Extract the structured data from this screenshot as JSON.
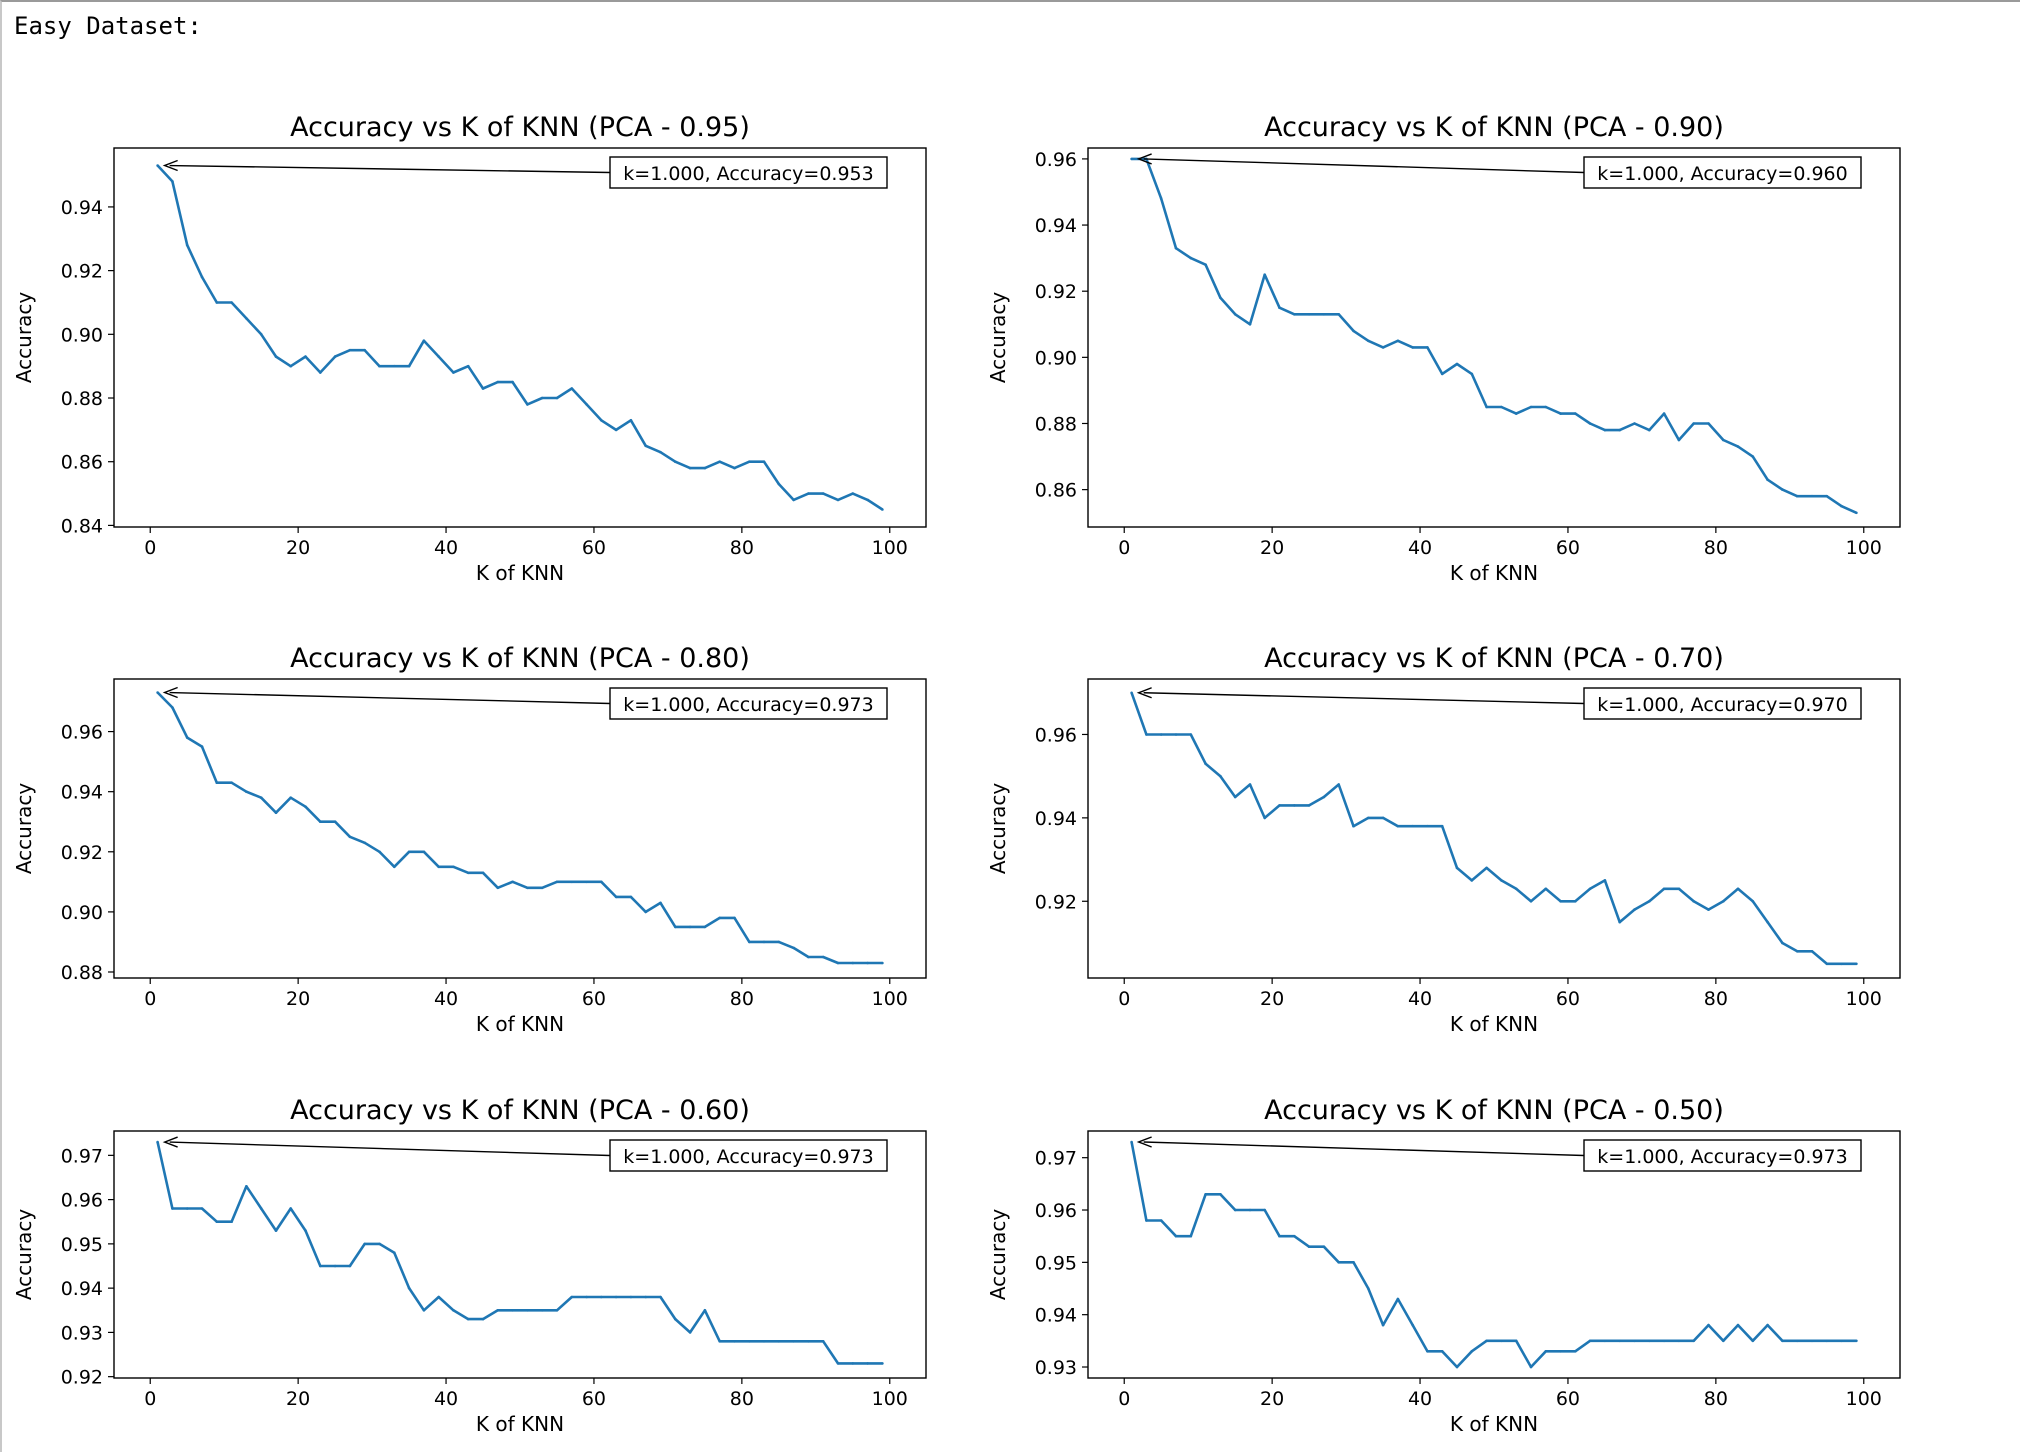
{
  "output_label": "Easy Dataset:",
  "chart_data": [
    {
      "type": "line",
      "title": "Accuracy vs K of KNN (PCA - 0.95)",
      "xlabel": "K of KNN",
      "ylabel": "Accuracy",
      "xlim": [
        -4.9,
        104.9
      ],
      "ylim": [
        0.8395,
        0.9585
      ],
      "xticks": [
        0,
        20,
        40,
        60,
        80,
        100
      ],
      "yticks": [
        0.84,
        0.86,
        0.88,
        0.9,
        0.92,
        0.94
      ],
      "ytick_labels": [
        "0.84",
        "0.86",
        "0.88",
        "0.90",
        "0.92",
        "0.94"
      ],
      "annotation": "k=1.000, Accuracy=0.953",
      "annotation_point": [
        1,
        0.953
      ],
      "color": "#1f77b4",
      "x": [
        1,
        3,
        5,
        7,
        9,
        11,
        13,
        15,
        17,
        19,
        21,
        23,
        25,
        27,
        29,
        31,
        33,
        35,
        37,
        39,
        41,
        43,
        45,
        47,
        49,
        51,
        53,
        55,
        57,
        59,
        61,
        63,
        65,
        67,
        69,
        71,
        73,
        75,
        77,
        79,
        81,
        83,
        85,
        87,
        89,
        91,
        93,
        95,
        97,
        99
      ],
      "y": [
        0.953,
        0.948,
        0.928,
        0.918,
        0.91,
        0.91,
        0.905,
        0.9,
        0.893,
        0.89,
        0.893,
        0.888,
        0.893,
        0.895,
        0.895,
        0.89,
        0.89,
        0.89,
        0.898,
        0.893,
        0.888,
        0.89,
        0.883,
        0.885,
        0.885,
        0.878,
        0.88,
        0.88,
        0.883,
        0.878,
        0.873,
        0.87,
        0.873,
        0.865,
        0.863,
        0.86,
        0.858,
        0.858,
        0.86,
        0.858,
        0.86,
        0.86,
        0.853,
        0.848,
        0.85,
        0.85,
        0.848,
        0.85,
        0.848,
        0.845
      ]
    },
    {
      "type": "line",
      "title": "Accuracy vs K of KNN (PCA - 0.90)",
      "xlabel": "K of KNN",
      "ylabel": "Accuracy",
      "xlim": [
        -4.9,
        104.9
      ],
      "ylim": [
        0.8487,
        0.9633
      ],
      "xticks": [
        0,
        20,
        40,
        60,
        80,
        100
      ],
      "yticks": [
        0.86,
        0.88,
        0.9,
        0.92,
        0.94,
        0.96
      ],
      "ytick_labels": [
        "0.86",
        "0.88",
        "0.90",
        "0.92",
        "0.94",
        "0.96"
      ],
      "annotation": "k=1.000, Accuracy=0.960",
      "annotation_point": [
        1,
        0.96
      ],
      "color": "#1f77b4",
      "x": [
        1,
        3,
        5,
        7,
        9,
        11,
        13,
        15,
        17,
        19,
        21,
        23,
        25,
        27,
        29,
        31,
        33,
        35,
        37,
        39,
        41,
        43,
        45,
        47,
        49,
        51,
        53,
        55,
        57,
        59,
        61,
        63,
        65,
        67,
        69,
        71,
        73,
        75,
        77,
        79,
        81,
        83,
        85,
        87,
        89,
        91,
        93,
        95,
        97,
        99
      ],
      "y": [
        0.96,
        0.96,
        0.948,
        0.933,
        0.93,
        0.928,
        0.918,
        0.913,
        0.91,
        0.925,
        0.915,
        0.913,
        0.913,
        0.913,
        0.913,
        0.908,
        0.905,
        0.903,
        0.905,
        0.903,
        0.903,
        0.895,
        0.898,
        0.895,
        0.885,
        0.885,
        0.883,
        0.885,
        0.885,
        0.883,
        0.883,
        0.88,
        0.878,
        0.878,
        0.88,
        0.878,
        0.883,
        0.875,
        0.88,
        0.88,
        0.875,
        0.873,
        0.87,
        0.863,
        0.86,
        0.858,
        0.858,
        0.858,
        0.855,
        0.853
      ]
    },
    {
      "type": "line",
      "title": "Accuracy vs K of KNN (PCA - 0.80)",
      "xlabel": "K of KNN",
      "ylabel": "Accuracy",
      "xlim": [
        -4.9,
        104.9
      ],
      "ylim": [
        0.878,
        0.9775
      ],
      "xticks": [
        0,
        20,
        40,
        60,
        80,
        100
      ],
      "yticks": [
        0.88,
        0.9,
        0.92,
        0.94,
        0.96
      ],
      "ytick_labels": [
        "0.88",
        "0.90",
        "0.92",
        "0.94",
        "0.96"
      ],
      "annotation": "k=1.000, Accuracy=0.973",
      "annotation_point": [
        1,
        0.973
      ],
      "color": "#1f77b4",
      "x": [
        1,
        3,
        5,
        7,
        9,
        11,
        13,
        15,
        17,
        19,
        21,
        23,
        25,
        27,
        29,
        31,
        33,
        35,
        37,
        39,
        41,
        43,
        45,
        47,
        49,
        51,
        53,
        55,
        57,
        59,
        61,
        63,
        65,
        67,
        69,
        71,
        73,
        75,
        77,
        79,
        81,
        83,
        85,
        87,
        89,
        91,
        93,
        95,
        97,
        99
      ],
      "y": [
        0.973,
        0.968,
        0.958,
        0.955,
        0.943,
        0.943,
        0.94,
        0.938,
        0.933,
        0.938,
        0.935,
        0.93,
        0.93,
        0.925,
        0.923,
        0.92,
        0.915,
        0.92,
        0.92,
        0.915,
        0.915,
        0.913,
        0.913,
        0.908,
        0.91,
        0.908,
        0.908,
        0.91,
        0.91,
        0.91,
        0.91,
        0.905,
        0.905,
        0.9,
        0.903,
        0.895,
        0.895,
        0.895,
        0.898,
        0.898,
        0.89,
        0.89,
        0.89,
        0.888,
        0.885,
        0.885,
        0.883,
        0.883,
        0.883,
        0.883
      ]
    },
    {
      "type": "line",
      "title": "Accuracy vs K of KNN (PCA - 0.70)",
      "xlabel": "K of KNN",
      "ylabel": "Accuracy",
      "xlim": [
        -4.9,
        104.9
      ],
      "ylim": [
        0.9016,
        0.9733
      ],
      "xticks": [
        0,
        20,
        40,
        60,
        80,
        100
      ],
      "yticks": [
        0.92,
        0.94,
        0.96
      ],
      "ytick_labels": [
        "0.92",
        "0.94",
        "0.96"
      ],
      "annotation": "k=1.000, Accuracy=0.970",
      "annotation_point": [
        1,
        0.97
      ],
      "color": "#1f77b4",
      "x": [
        1,
        3,
        5,
        7,
        9,
        11,
        13,
        15,
        17,
        19,
        21,
        23,
        25,
        27,
        29,
        31,
        33,
        35,
        37,
        39,
        41,
        43,
        45,
        47,
        49,
        51,
        53,
        55,
        57,
        59,
        61,
        63,
        65,
        67,
        69,
        71,
        73,
        75,
        77,
        79,
        81,
        83,
        85,
        87,
        89,
        91,
        93,
        95,
        97,
        99
      ],
      "y": [
        0.97,
        0.96,
        0.96,
        0.96,
        0.96,
        0.953,
        0.95,
        0.945,
        0.948,
        0.94,
        0.943,
        0.943,
        0.943,
        0.945,
        0.948,
        0.938,
        0.94,
        0.94,
        0.938,
        0.938,
        0.938,
        0.938,
        0.928,
        0.925,
        0.928,
        0.925,
        0.923,
        0.92,
        0.923,
        0.92,
        0.92,
        0.923,
        0.925,
        0.915,
        0.918,
        0.92,
        0.923,
        0.923,
        0.92,
        0.918,
        0.92,
        0.923,
        0.92,
        0.915,
        0.91,
        0.908,
        0.908,
        0.905,
        0.905,
        0.905
      ]
    },
    {
      "type": "line",
      "title": "Accuracy vs K of KNN (PCA - 0.60)",
      "xlabel": "K of KNN",
      "ylabel": "Accuracy",
      "xlim": [
        -4.9,
        104.9
      ],
      "ylim": [
        0.9197,
        0.9755
      ],
      "xticks": [
        0,
        20,
        40,
        60,
        80,
        100
      ],
      "yticks": [
        0.92,
        0.93,
        0.94,
        0.95,
        0.96,
        0.97
      ],
      "ytick_labels": [
        "0.92",
        "0.93",
        "0.94",
        "0.95",
        "0.96",
        "0.97"
      ],
      "annotation": "k=1.000, Accuracy=0.973",
      "annotation_point": [
        1,
        0.973
      ],
      "color": "#1f77b4",
      "x": [
        1,
        3,
        5,
        7,
        9,
        11,
        13,
        15,
        17,
        19,
        21,
        23,
        25,
        27,
        29,
        31,
        33,
        35,
        37,
        39,
        41,
        43,
        45,
        47,
        49,
        51,
        53,
        55,
        57,
        59,
        61,
        63,
        65,
        67,
        69,
        71,
        73,
        75,
        77,
        79,
        81,
        83,
        85,
        87,
        89,
        91,
        93,
        95,
        97,
        99
      ],
      "y": [
        0.973,
        0.958,
        0.958,
        0.958,
        0.955,
        0.955,
        0.963,
        0.958,
        0.953,
        0.958,
        0.953,
        0.945,
        0.945,
        0.945,
        0.95,
        0.95,
        0.948,
        0.94,
        0.935,
        0.938,
        0.935,
        0.933,
        0.933,
        0.935,
        0.935,
        0.935,
        0.935,
        0.935,
        0.938,
        0.938,
        0.938,
        0.938,
        0.938,
        0.938,
        0.938,
        0.933,
        0.93,
        0.935,
        0.928,
        0.928,
        0.928,
        0.928,
        0.928,
        0.928,
        0.928,
        0.928,
        0.923,
        0.923,
        0.923,
        0.923
      ]
    },
    {
      "type": "line",
      "title": "Accuracy vs K of KNN (PCA - 0.50)",
      "xlabel": "K of KNN",
      "ylabel": "Accuracy",
      "xlim": [
        -4.9,
        104.9
      ],
      "ylim": [
        0.9279,
        0.9751
      ],
      "xticks": [
        0,
        20,
        40,
        60,
        80,
        100
      ],
      "yticks": [
        0.93,
        0.94,
        0.95,
        0.96,
        0.97
      ],
      "ytick_labels": [
        "0.93",
        "0.94",
        "0.95",
        "0.96",
        "0.97"
      ],
      "annotation": "k=1.000, Accuracy=0.973",
      "annotation_point": [
        1,
        0.973
      ],
      "color": "#1f77b4",
      "x": [
        1,
        3,
        5,
        7,
        9,
        11,
        13,
        15,
        17,
        19,
        21,
        23,
        25,
        27,
        29,
        31,
        33,
        35,
        37,
        39,
        41,
        43,
        45,
        47,
        49,
        51,
        53,
        55,
        57,
        59,
        61,
        63,
        65,
        67,
        69,
        71,
        73,
        75,
        77,
        79,
        81,
        83,
        85,
        87,
        89,
        91,
        93,
        95,
        97,
        99
      ],
      "y": [
        0.973,
        0.958,
        0.958,
        0.955,
        0.955,
        0.963,
        0.963,
        0.96,
        0.96,
        0.96,
        0.955,
        0.955,
        0.953,
        0.953,
        0.95,
        0.95,
        0.945,
        0.938,
        0.943,
        0.938,
        0.933,
        0.933,
        0.93,
        0.933,
        0.935,
        0.935,
        0.935,
        0.93,
        0.933,
        0.933,
        0.933,
        0.935,
        0.935,
        0.935,
        0.935,
        0.935,
        0.935,
        0.935,
        0.935,
        0.938,
        0.935,
        0.938,
        0.935,
        0.938,
        0.935,
        0.935,
        0.935,
        0.935,
        0.935,
        0.935
      ]
    }
  ]
}
